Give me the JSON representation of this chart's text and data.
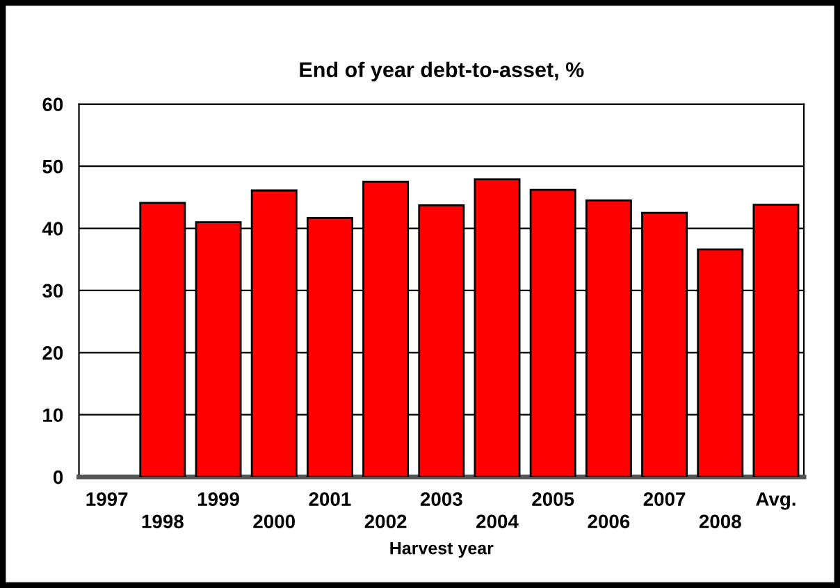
{
  "chart_data": {
    "type": "bar",
    "title": "End of year debt-to-asset, %",
    "xlabel": "Harvest year",
    "categories": [
      "1997",
      "1998",
      "1999",
      "2000",
      "2001",
      "2002",
      "2003",
      "2004",
      "2005",
      "2006",
      "2007",
      "2008",
      "Avg."
    ],
    "values": [
      null,
      44.1,
      41.0,
      46.1,
      41.7,
      47.5,
      43.7,
      47.9,
      46.2,
      44.5,
      42.5,
      36.6,
      43.8
    ],
    "color": "#ff0000",
    "ylim": [
      0,
      60
    ],
    "yticks": [
      0,
      10,
      20,
      30,
      40,
      50,
      60
    ],
    "grid": "y",
    "legend": false
  }
}
